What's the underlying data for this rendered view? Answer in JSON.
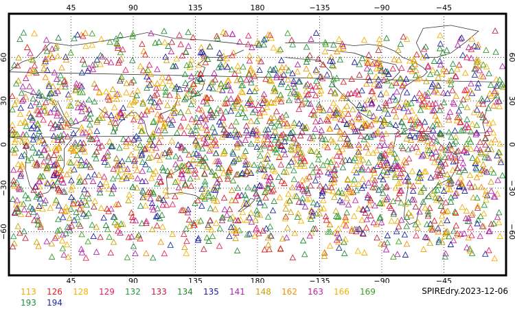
{
  "map": {
    "lon_top_labels": [
      "45",
      "90",
      "135",
      "180",
      "−135",
      "−90",
      "−45"
    ],
    "lon_bottom_labels": [
      "45",
      "90",
      "135",
      "180",
      "−135",
      "−90",
      "−45"
    ],
    "lat_left_labels": [
      "60",
      "30",
      "0",
      "−30",
      "−60"
    ],
    "lat_right_labels": [
      "60",
      "30",
      "0",
      "−30",
      "−60"
    ],
    "lon_start": 0,
    "lon_end": 360,
    "lat_top": 90,
    "lat_bottom": -90,
    "grid_lons": [
      45,
      90,
      135,
      180,
      225,
      270,
      315
    ],
    "grid_lats": [
      60,
      30,
      0,
      -30,
      -60
    ],
    "marker_shape": "triangle"
  },
  "legend": {
    "items": [
      {
        "label": "113",
        "color": "#f5a800"
      },
      {
        "label": "126",
        "color": "#e01f1f"
      },
      {
        "label": "128",
        "color": "#f0b400"
      },
      {
        "label": "129",
        "color": "#e8205a"
      },
      {
        "label": "132",
        "color": "#1f9a3a"
      },
      {
        "label": "133",
        "color": "#c0203a"
      },
      {
        "label": "134",
        "color": "#1f8a2a"
      },
      {
        "label": "135",
        "color": "#1a1aa8"
      },
      {
        "label": "141",
        "color": "#b01fb0"
      },
      {
        "label": "148",
        "color": "#c8a000"
      },
      {
        "label": "162",
        "color": "#f09000"
      },
      {
        "label": "163",
        "color": "#c020a0"
      },
      {
        "label": "166",
        "color": "#f0b000"
      },
      {
        "label": "169",
        "color": "#3aa020"
      },
      {
        "label": "193",
        "color": "#208a40"
      },
      {
        "label": "194",
        "color": "#1a2aa0"
      }
    ]
  },
  "footer": {
    "title": "SPIREdry.2023-12-06"
  }
}
